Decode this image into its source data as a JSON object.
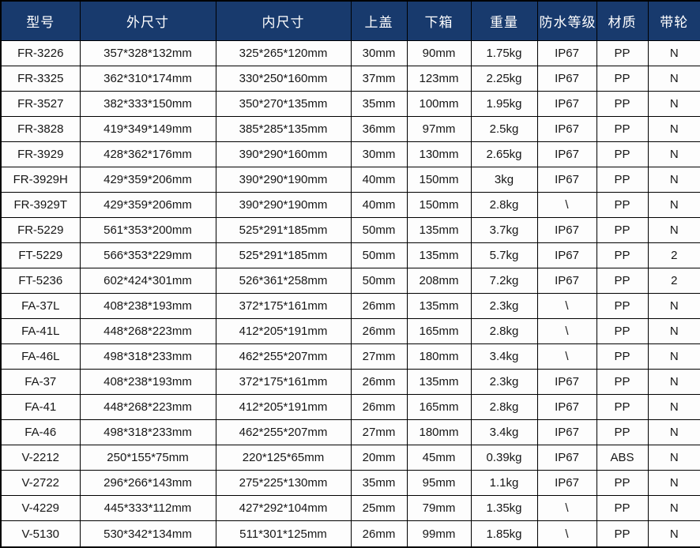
{
  "table": {
    "headers": [
      "型号",
      "外尺寸",
      "内尺寸",
      "上盖",
      "下箱",
      "重量",
      "防水等级",
      "材质",
      "带轮"
    ],
    "rows": [
      [
        "FR-3226",
        "357*328*132mm",
        "325*265*120mm",
        "30mm",
        "90mm",
        "1.75kg",
        "IP67",
        "PP",
        "N"
      ],
      [
        "FR-3325",
        "362*310*174mm",
        "330*250*160mm",
        "37mm",
        "123mm",
        "2.25kg",
        "IP67",
        "PP",
        "N"
      ],
      [
        "FR-3527",
        "382*333*150mm",
        "350*270*135mm",
        "35mm",
        "100mm",
        "1.95kg",
        "IP67",
        "PP",
        "N"
      ],
      [
        "FR-3828",
        "419*349*149mm",
        "385*285*135mm",
        "36mm",
        "97mm",
        "2.5kg",
        "IP67",
        "PP",
        "N"
      ],
      [
        "FR-3929",
        "428*362*176mm",
        "390*290*160mm",
        "30mm",
        "130mm",
        "2.65kg",
        "IP67",
        "PP",
        "N"
      ],
      [
        "FR-3929H",
        "429*359*206mm",
        "390*290*190mm",
        "40mm",
        "150mm",
        "3kg",
        "IP67",
        "PP",
        "N"
      ],
      [
        "FR-3929T",
        "429*359*206mm",
        "390*290*190mm",
        "40mm",
        "150mm",
        "2.8kg",
        "\\",
        "PP",
        "N"
      ],
      [
        "FR-5229",
        "561*353*200mm",
        "525*291*185mm",
        "50mm",
        "135mm",
        "3.7kg",
        "IP67",
        "PP",
        "N"
      ],
      [
        "FT-5229",
        "566*353*229mm",
        "525*291*185mm",
        "50mm",
        "135mm",
        "5.7kg",
        "IP67",
        "PP",
        "2"
      ],
      [
        "FT-5236",
        "602*424*301mm",
        "526*361*258mm",
        "50mm",
        "208mm",
        "7.2kg",
        "IP67",
        "PP",
        "2"
      ],
      [
        "FA-37L",
        "408*238*193mm",
        "372*175*161mm",
        "26mm",
        "135mm",
        "2.3kg",
        "\\",
        "PP",
        "N"
      ],
      [
        "FA-41L",
        "448*268*223mm",
        "412*205*191mm",
        "26mm",
        "165mm",
        "2.8kg",
        "\\",
        "PP",
        "N"
      ],
      [
        "FA-46L",
        "498*318*233mm",
        "462*255*207mm",
        "27mm",
        "180mm",
        "3.4kg",
        "\\",
        "PP",
        "N"
      ],
      [
        "FA-37",
        "408*238*193mm",
        "372*175*161mm",
        "26mm",
        "135mm",
        "2.3kg",
        "IP67",
        "PP",
        "N"
      ],
      [
        "FA-41",
        "448*268*223mm",
        "412*205*191mm",
        "26mm",
        "165mm",
        "2.8kg",
        "IP67",
        "PP",
        "N"
      ],
      [
        "FA-46",
        "498*318*233mm",
        "462*255*207mm",
        "27mm",
        "180mm",
        "3.4kg",
        "IP67",
        "PP",
        "N"
      ],
      [
        "V-2212",
        "250*155*75mm",
        "220*125*65mm",
        "20mm",
        "45mm",
        "0.39kg",
        "IP67",
        "ABS",
        "N"
      ],
      [
        "V-2722",
        "296*266*143mm",
        "275*225*130mm",
        "35mm",
        "95mm",
        "1.1kg",
        "IP67",
        "PP",
        "N"
      ],
      [
        "V-4229",
        "445*333*112mm",
        "427*292*104mm",
        "25mm",
        "79mm",
        "1.35kg",
        "\\",
        "PP",
        "N"
      ],
      [
        "V-5130",
        "530*342*134mm",
        "511*301*125mm",
        "26mm",
        "99mm",
        "1.85kg",
        "\\",
        "PP",
        "N"
      ]
    ]
  },
  "colors": {
    "header_bg": "#183a6d",
    "header_text": "#ffffff",
    "border": "#000000",
    "cell_bg": "#fdfdfd",
    "cell_text": "#161616"
  }
}
